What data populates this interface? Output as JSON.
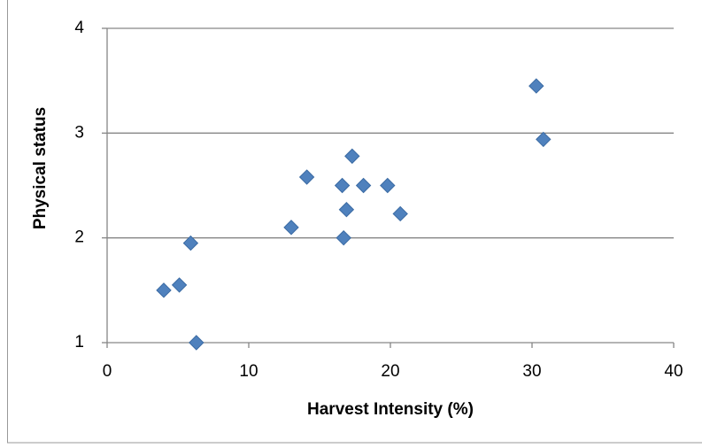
{
  "chart_data": {
    "type": "scatter",
    "x_label": "Harvest Intensity (%)",
    "y_label": "Physical status",
    "series": [
      {
        "color": "#4f81bd",
        "x": [
          4.0,
          5.1,
          5.9,
          6.3,
          13.0,
          14.1,
          16.6,
          16.7,
          16.9,
          17.3,
          18.1,
          19.8,
          20.7,
          30.3,
          30.8
        ],
        "values": [
          1.5,
          1.55,
          1.95,
          1.0,
          2.1,
          2.58,
          2.5,
          2.0,
          2.27,
          2.78,
          2.5,
          2.5,
          2.23,
          3.45,
          2.94
        ]
      }
    ],
    "xlim": [
      0,
      40
    ],
    "xticks": [
      0,
      10,
      20,
      30,
      40
    ],
    "ylim": [
      1,
      4
    ],
    "yticks": [
      1,
      2,
      3,
      4
    ],
    "grid": true
  }
}
